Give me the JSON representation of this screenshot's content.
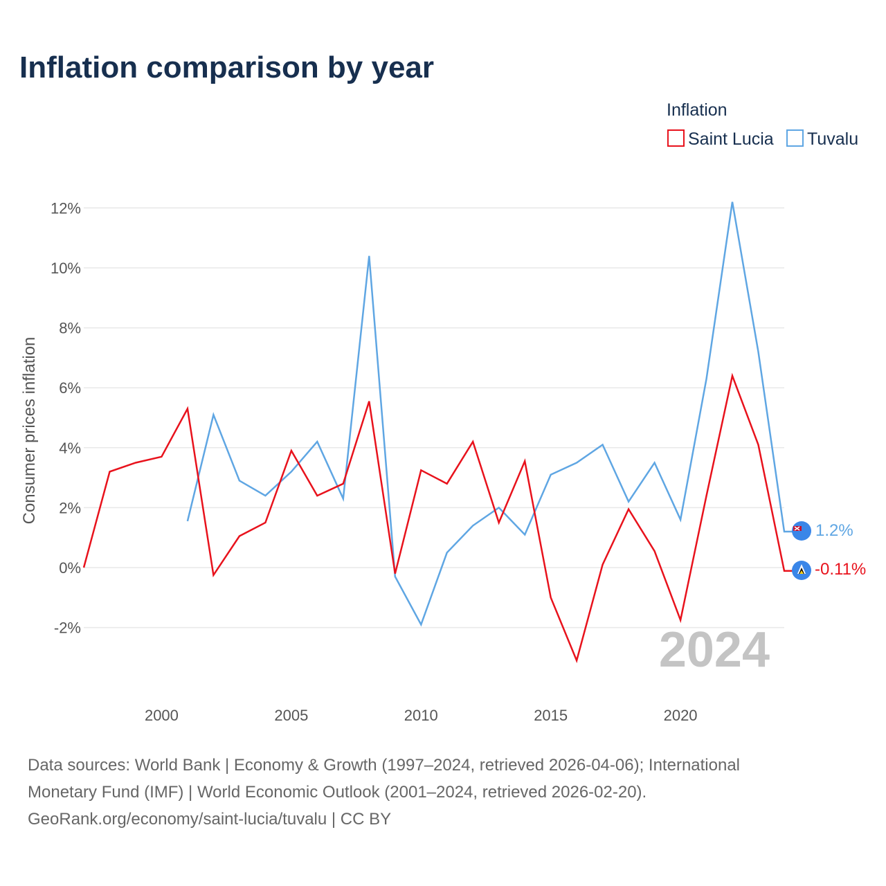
{
  "title": "Inflation comparison by year",
  "year_marker": "2024",
  "legend": {
    "title": "Inflation",
    "items": [
      {
        "label": "Saint Lucia",
        "color": "#e8121c"
      },
      {
        "label": "Tuvalu",
        "color": "#5fa6e3"
      }
    ]
  },
  "end_labels": {
    "saint_lucia": "-0.11%",
    "tuvalu": "1.2%"
  },
  "source": {
    "line1": "Data sources: World Bank | Economy & Growth (1997–2024, retrieved 2026-04-06); International",
    "line2": "Monetary Fund (IMF) | World Economic Outlook (2001–2024, retrieved 2026-02-20).",
    "line3": "GeoRank.org/economy/saint-lucia/tuvalu | CC BY"
  },
  "chart_data": {
    "type": "line",
    "title": "Inflation comparison by year",
    "xlabel": "",
    "ylabel": "Consumer prices inflation",
    "xlim": [
      1997,
      2024
    ],
    "ylim": [
      -4,
      12.5
    ],
    "x_ticks": [
      2000,
      2005,
      2010,
      2015,
      2020
    ],
    "y_ticks": [
      12,
      10,
      8,
      6,
      4,
      2,
      0,
      -2
    ],
    "y_tick_labels": [
      "12%",
      "10%",
      "8%",
      "6%",
      "4%",
      "2%",
      "0%",
      "-2%"
    ],
    "x_tick_labels": [
      "2000",
      "2005",
      "2010",
      "2015",
      "2020"
    ],
    "series": [
      {
        "name": "Saint Lucia",
        "color": "#e8121c",
        "x": [
          1997,
          1998,
          1999,
          2000,
          2001,
          2002,
          2003,
          2004,
          2005,
          2006,
          2007,
          2008,
          2009,
          2010,
          2011,
          2012,
          2013,
          2014,
          2015,
          2016,
          2017,
          2018,
          2019,
          2020,
          2021,
          2022,
          2023,
          2024
        ],
        "values": [
          0.0,
          3.2,
          3.5,
          3.7,
          5.3,
          -0.25,
          1.05,
          1.5,
          3.9,
          2.4,
          2.8,
          5.55,
          -0.2,
          3.25,
          2.8,
          4.2,
          1.5,
          3.55,
          -1.0,
          -3.1,
          0.1,
          1.95,
          0.55,
          -1.75,
          2.4,
          6.4,
          4.1,
          -0.11
        ]
      },
      {
        "name": "Tuvalu",
        "color": "#5fa6e3",
        "x": [
          2001,
          2002,
          2003,
          2004,
          2005,
          2006,
          2007,
          2008,
          2009,
          2010,
          2011,
          2012,
          2013,
          2014,
          2015,
          2016,
          2017,
          2018,
          2019,
          2020,
          2021,
          2022,
          2023,
          2024
        ],
        "values": [
          1.55,
          5.1,
          2.9,
          2.4,
          3.2,
          4.2,
          2.3,
          10.4,
          -0.3,
          -1.9,
          0.5,
          1.4,
          2.0,
          1.1,
          3.1,
          3.5,
          4.1,
          2.2,
          3.5,
          1.6,
          6.3,
          12.2,
          7.2,
          1.2
        ]
      }
    ]
  }
}
